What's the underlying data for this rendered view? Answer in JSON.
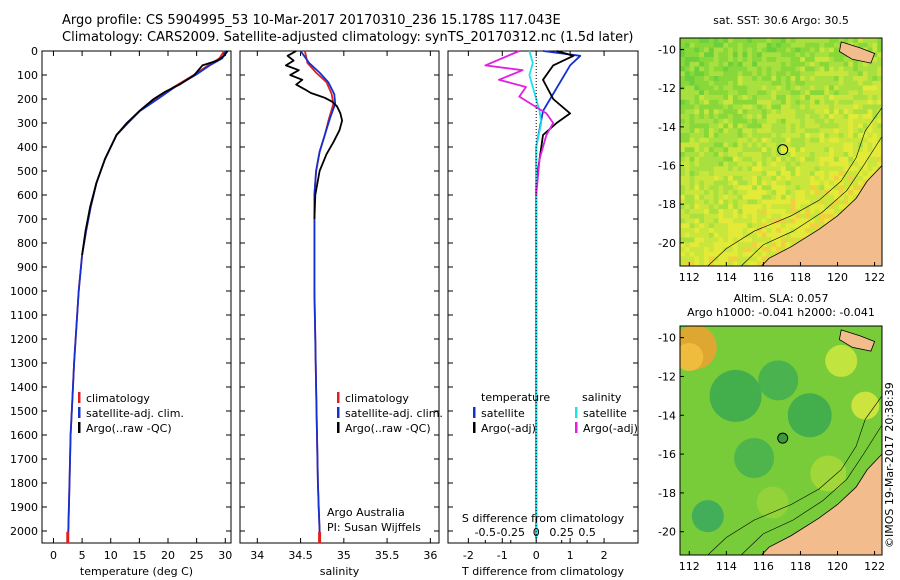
{
  "header": {
    "line1": "Argo profile: CS 5904995_53 10-Mar-2017 20170310_236 15.178S 117.043E",
    "line2": "Climatology: CARS2009. Satellite-adjusted climatology: synTS_20170312.nc (1.5d later)"
  },
  "colors": {
    "climatology": "#e02020",
    "satellite": "#1530d0",
    "argo": "#000000",
    "sat_salinity": "#20e0e8",
    "argo_salinity": "#e020e0",
    "land": "#f2bc8c"
  },
  "chart_data": [
    {
      "type": "line",
      "name": "temperature-profile",
      "xlabel": "temperature (deg C)",
      "ylabel": "",
      "xlim": [
        -2,
        31
      ],
      "ylim": [
        2050,
        0
      ],
      "xticks": [
        0,
        5,
        10,
        15,
        20,
        25,
        30
      ],
      "yticks": [
        0,
        100,
        200,
        300,
        400,
        500,
        600,
        700,
        800,
        900,
        1000,
        1100,
        1200,
        1300,
        1400,
        1500,
        1600,
        1700,
        1800,
        1900,
        2000
      ],
      "legend": [
        "climatology",
        "satellite-adj. clim.",
        "Argo(..raw -QC)"
      ],
      "series": [
        {
          "name": "climatology",
          "color": "#e02020",
          "x": [
            29.8,
            29.0,
            27.0,
            24.5,
            21.0,
            18.0,
            15.0,
            13.0,
            11.0,
            9.0,
            7.5,
            6.5,
            5.7,
            5.0,
            4.4,
            4.0,
            3.6,
            3.3,
            3.0,
            2.8,
            2.6,
            2.5
          ],
          "y": [
            0,
            30,
            60,
            100,
            150,
            200,
            250,
            300,
            350,
            450,
            550,
            650,
            750,
            850,
            1000,
            1150,
            1300,
            1450,
            1600,
            1800,
            2000,
            2030
          ]
        },
        {
          "name": "satellite-adj. clim.",
          "color": "#1530d0",
          "x": [
            30.0,
            29.5,
            27.3,
            24.8,
            21.2,
            18.2,
            15.1,
            13.0,
            11.0,
            9.0,
            7.5,
            6.5,
            5.7,
            5.0,
            4.4,
            4.0,
            3.6,
            3.3,
            3.0,
            2.8,
            2.6,
            2.5
          ],
          "y": [
            0,
            30,
            60,
            100,
            150,
            200,
            250,
            300,
            350,
            450,
            550,
            650,
            750,
            850,
            1000,
            1150,
            1300,
            1450,
            1600,
            1800,
            2000,
            2030
          ]
        },
        {
          "name": "Argo(..raw -QC)",
          "color": "#000000",
          "x": [
            30.4,
            29.8,
            28.6,
            26.0,
            24.6,
            22.0,
            19.5,
            17.5,
            15.0,
            12.8,
            11.0,
            9.0,
            7.5,
            6.4,
            5.6,
            5.0
          ],
          "y": [
            0,
            20,
            40,
            60,
            100,
            140,
            170,
            200,
            250,
            300,
            350,
            450,
            550,
            650,
            750,
            850
          ]
        }
      ]
    },
    {
      "type": "line",
      "name": "salinity-profile",
      "xlabel": "salinity",
      "xlim": [
        33.8,
        36.1
      ],
      "ylim": [
        2050,
        0
      ],
      "xticks": [
        34,
        34.5,
        35,
        35.5,
        36
      ],
      "xticklabels": [
        "34",
        "34.5",
        "35",
        "35.5",
        "36"
      ],
      "legend": [
        "climatology",
        "satellite-adj. clim.",
        "Argo(..raw -QC)"
      ],
      "annotation": [
        "Argo Australia",
        "PI: Susan Wijffels"
      ],
      "series": [
        {
          "name": "climatology",
          "color": "#e02020",
          "x": [
            34.55,
            34.58,
            34.68,
            34.8,
            34.86,
            34.88,
            34.83,
            34.78,
            34.72,
            34.68,
            34.66,
            34.66,
            34.66,
            34.67,
            34.68,
            34.69,
            34.7,
            34.71,
            34.72,
            34.72
          ],
          "y": [
            0,
            50,
            90,
            130,
            180,
            220,
            280,
            350,
            420,
            500,
            600,
            800,
            1000,
            1200,
            1400,
            1600,
            1800,
            1900,
            2000,
            2030
          ]
        },
        {
          "name": "satellite-adj. clim.",
          "color": "#1530d0",
          "x": [
            34.5,
            34.6,
            34.72,
            34.82,
            34.89,
            34.9,
            34.84,
            34.78,
            34.72,
            34.68,
            34.66,
            34.66,
            34.66,
            34.67,
            34.68,
            34.69,
            34.7,
            34.71,
            34.72,
            34.72
          ],
          "y": [
            0,
            50,
            90,
            130,
            180,
            220,
            280,
            350,
            420,
            500,
            600,
            800,
            1000,
            1200,
            1400,
            1600,
            1800,
            1900,
            2000,
            2030
          ]
        },
        {
          "name": "Argo(..raw -QC)",
          "color": "#000000",
          "x": [
            34.45,
            34.35,
            34.42,
            34.33,
            34.48,
            34.38,
            34.52,
            34.45,
            34.55,
            34.62,
            34.7,
            34.78,
            34.86,
            34.92,
            34.96,
            34.98,
            34.95,
            34.88,
            34.8,
            34.72,
            34.67,
            34.66
          ],
          "y": [
            0,
            20,
            40,
            60,
            80,
            100,
            120,
            140,
            160,
            175,
            185,
            195,
            210,
            230,
            260,
            290,
            330,
            380,
            430,
            500,
            600,
            700
          ]
        }
      ]
    },
    {
      "type": "line",
      "name": "difference-profile",
      "xlabel": "T difference from climatology",
      "top_xlabel": "S difference from climatology",
      "xlim": [
        -2.6,
        3.0
      ],
      "ylim": [
        2050,
        0
      ],
      "xticks": [
        -2,
        -1,
        0,
        1,
        2
      ],
      "xticklabels": [
        "-2",
        "-1",
        "0",
        "1",
        "2"
      ],
      "sxticks": [
        -1.5,
        -0.75,
        0.75,
        1.5
      ],
      "sxticklabels": [
        "-0.5",
        "-0.25",
        "0.25",
        "0.5"
      ],
      "legend_title_left": "temperature",
      "legend_title_right": "salinity",
      "legend": [
        "satellite",
        "Argo(-adj)",
        "satellite",
        "Argo(-adj)"
      ],
      "series": [
        {
          "name": "T satellite",
          "color": "#1530d0",
          "x": [
            0.2,
            1.3,
            1.0,
            0.2,
            0.0,
            0.0,
            0.0
          ],
          "y": [
            0,
            20,
            60,
            250,
            400,
            600,
            2030
          ]
        },
        {
          "name": "T Argo(-adj)",
          "color": "#000000",
          "x": [
            0.6,
            1.1,
            0.8,
            0.5,
            0.2,
            0.5,
            1.0,
            0.6,
            0.2,
            0.1,
            0.0,
            0.0
          ],
          "y": [
            0,
            20,
            40,
            60,
            120,
            200,
            260,
            300,
            350,
            450,
            550,
            2030
          ]
        },
        {
          "name": "S satellite",
          "color": "#20e0e8",
          "x": [
            -0.2,
            -0.1,
            -0.2,
            -0.1,
            0.0,
            0.1,
            0.15,
            0.0,
            0.0,
            0.0
          ],
          "y": [
            0,
            50,
            100,
            150,
            200,
            250,
            300,
            400,
            600,
            2030
          ]
        },
        {
          "name": "S Argo(-adj)",
          "color": "#e020e0",
          "x": [
            -0.5,
            -1.5,
            -0.4,
            -1.1,
            -0.3,
            -0.5,
            0.3,
            0.5,
            0.3,
            0.1,
            0.0
          ],
          "y": [
            0,
            60,
            80,
            120,
            150,
            190,
            260,
            300,
            350,
            450,
            600
          ]
        }
      ]
    },
    {
      "type": "heatmap",
      "name": "sst-map",
      "title": "sat. SST: 30.6  Argo: 30.5",
      "xlim": [
        111.5,
        122.4
      ],
      "ylim": [
        -21.2,
        -9.4
      ],
      "xticks": [
        112,
        114,
        116,
        118,
        120,
        122
      ],
      "yticks": [
        -10,
        -12,
        -14,
        -16,
        -18,
        -20
      ],
      "marker": [
        117.043,
        -15.178
      ]
    },
    {
      "type": "heatmap",
      "name": "sla-map",
      "title": "Altim. SLA: 0.057",
      "subtitle": "Argo h1000: -0.041 h2000: -0.041",
      "xlim": [
        111.5,
        122.4
      ],
      "ylim": [
        -21.2,
        -9.4
      ],
      "xticks": [
        112,
        114,
        116,
        118,
        120,
        122
      ],
      "yticks": [
        -10,
        -12,
        -14,
        -16,
        -18,
        -20
      ],
      "marker": [
        117.043,
        -15.178
      ]
    }
  ],
  "footer": {
    "credit": "©IMOS 19-Mar-2017 20:38:39"
  }
}
